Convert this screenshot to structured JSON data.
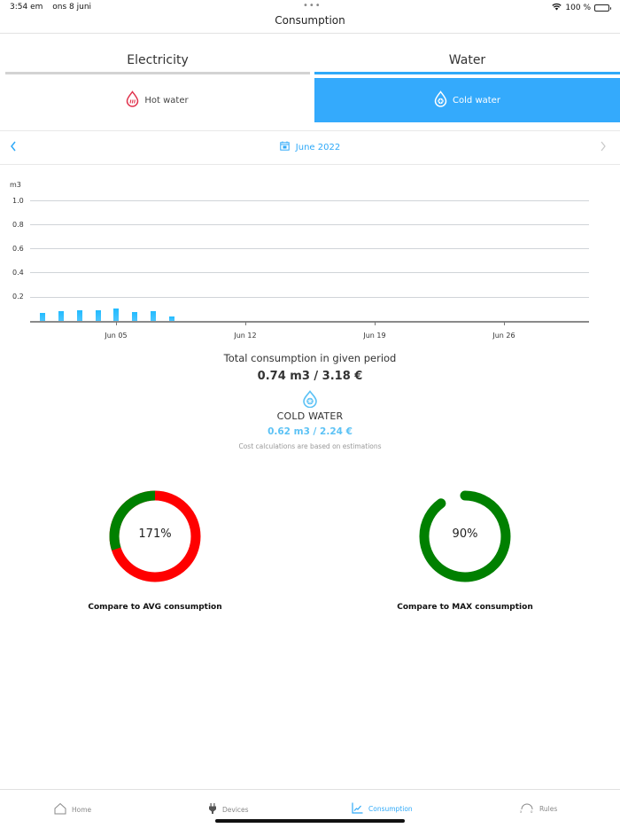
{
  "status_bar": {
    "time": "3:54 em",
    "date": "ons 8 juni",
    "dots": "•••",
    "battery": "100 %"
  },
  "nav": {
    "title": "Consumption"
  },
  "tabs": [
    {
      "label": "Electricity",
      "active": false
    },
    {
      "label": "Water",
      "active": true
    }
  ],
  "subtabs": [
    {
      "label": "Hot water",
      "icon": "hot-water-drop-icon",
      "active": false
    },
    {
      "label": "Cold water",
      "icon": "cold-water-drop-icon",
      "active": true
    }
  ],
  "month_nav": {
    "prev_icon": "chevron-left-icon",
    "month": "June 2022",
    "calendar_icon": "calendar-icon",
    "next_icon": "chevron-right-icon"
  },
  "colors": {
    "accent": "#2fa9f8",
    "active_subtab": "#34aafc",
    "bar": "#22bbff",
    "hot_water": "#e0334d",
    "gauge_green": "#008000",
    "gauge_red": "#ff0000",
    "cold_value": "#5cc2f5"
  },
  "chart_data": {
    "type": "bar",
    "title": "",
    "xlabel": "",
    "ylabel": "m3",
    "ylim": [
      0,
      1.0
    ],
    "yticks": [
      "0.2",
      "0.4",
      "0.6",
      "0.8",
      "1.0"
    ],
    "xticks": [
      "Jun 05",
      "Jun 12",
      "Jun 19",
      "Jun 26"
    ],
    "grid": true,
    "categories": [
      "Jun 01",
      "Jun 02",
      "Jun 03",
      "Jun 04",
      "Jun 05",
      "Jun 06",
      "Jun 07",
      "Jun 08"
    ],
    "values": [
      0.065,
      0.08,
      0.085,
      0.085,
      0.1,
      0.07,
      0.08,
      0.04
    ]
  },
  "summary": {
    "title": "Total consumption in given period",
    "total": "0.74 m3 / 3.18 €",
    "cold_label": "COLD WATER",
    "cold_value": "0.62 m3 / 2.24 €",
    "note": "Cost calculations are based on estimations"
  },
  "gauges": {
    "avg": {
      "percent": "171%",
      "caption": "Compare to AVG consumption"
    },
    "max": {
      "percent": "90%",
      "caption": "Compare to MAX consumption"
    }
  },
  "tabbar": [
    {
      "label": "Home",
      "icon": "home-icon",
      "active": false
    },
    {
      "label": "Devices",
      "icon": "plug-icon",
      "active": false
    },
    {
      "label": "Consumption",
      "icon": "chart-icon",
      "active": true
    },
    {
      "label": "Rules",
      "icon": "rules-icon",
      "active": false
    }
  ]
}
